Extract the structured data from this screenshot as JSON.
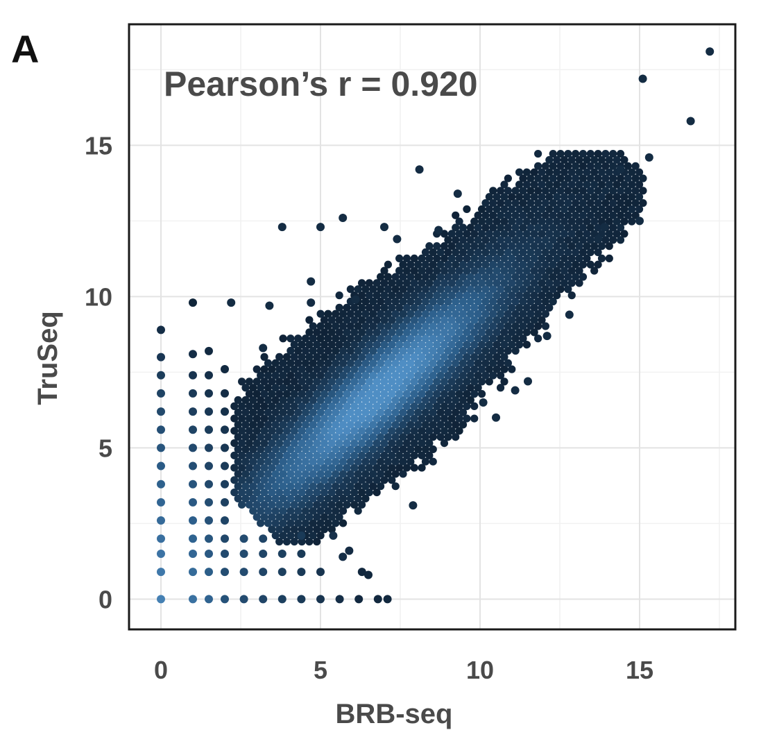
{
  "panel_label": "A",
  "chart_data": {
    "type": "scatter",
    "title": "",
    "annotation": "Pearson’s r = 0.920",
    "xlabel": "BRB-seq",
    "ylabel": "TruSeq",
    "xlim": [
      -1,
      18
    ],
    "ylim": [
      -1,
      19
    ],
    "x_ticks": [
      0,
      5,
      10,
      15
    ],
    "y_ticks": [
      0,
      5,
      10,
      15
    ],
    "x_tick_labels": [
      "0",
      "5",
      "10",
      "15"
    ],
    "y_tick_labels": [
      "0",
      "5",
      "10",
      "15"
    ],
    "grid": true,
    "legend": "none",
    "colors": {
      "low_density": "#0f2236",
      "mid_density": "#2c5e8a",
      "high_density": "#4f8ec4",
      "axis_text": "#4a4a4a"
    },
    "correlation": 0.92,
    "points_description": "dense hexbin cloud along y = x from about 2 to 14, discrete columns at x = 0, 1, 1.5, 2 and rows at y = 0, 1, 1.5, 2",
    "points": [
      [
        0,
        0
      ],
      [
        0,
        0.9
      ],
      [
        0,
        1.5
      ],
      [
        0,
        2
      ],
      [
        0,
        2.6
      ],
      [
        0,
        3.2
      ],
      [
        0,
        3.8
      ],
      [
        0,
        4.4
      ],
      [
        0,
        5
      ],
      [
        0,
        5.6
      ],
      [
        0,
        6.2
      ],
      [
        0,
        6.8
      ],
      [
        0,
        7.4
      ],
      [
        0,
        8
      ],
      [
        0,
        8.9
      ],
      [
        1,
        0
      ],
      [
        1,
        0.9
      ],
      [
        1,
        1.5
      ],
      [
        1,
        2
      ],
      [
        1,
        2.6
      ],
      [
        1,
        3.2
      ],
      [
        1,
        3.8
      ],
      [
        1,
        4.4
      ],
      [
        1,
        5
      ],
      [
        1,
        5.6
      ],
      [
        1,
        6.2
      ],
      [
        1,
        6.8
      ],
      [
        1,
        7.4
      ],
      [
        1,
        8.1
      ],
      [
        1,
        9.8
      ],
      [
        1.5,
        0
      ],
      [
        1.5,
        0.9
      ],
      [
        1.5,
        1.5
      ],
      [
        1.5,
        2
      ],
      [
        1.5,
        2.6
      ],
      [
        1.5,
        3.2
      ],
      [
        1.5,
        3.8
      ],
      [
        1.5,
        4.4
      ],
      [
        1.5,
        5
      ],
      [
        1.5,
        5.6
      ],
      [
        1.5,
        6.2
      ],
      [
        1.5,
        6.8
      ],
      [
        1.5,
        7.4
      ],
      [
        1.5,
        8.2
      ],
      [
        2,
        0
      ],
      [
        2,
        0.9
      ],
      [
        2,
        1.5
      ],
      [
        2,
        2
      ],
      [
        2,
        2.6
      ],
      [
        2,
        3.2
      ],
      [
        2,
        3.8
      ],
      [
        2,
        4.4
      ],
      [
        2,
        5
      ],
      [
        2,
        5.6
      ],
      [
        2,
        6.2
      ],
      [
        2,
        6.8
      ],
      [
        2,
        7.6
      ],
      [
        2.6,
        0
      ],
      [
        3.2,
        0
      ],
      [
        3.8,
        0
      ],
      [
        4.4,
        0
      ],
      [
        5,
        0
      ],
      [
        5.6,
        0
      ],
      [
        6.2,
        0
      ],
      [
        6.8,
        0
      ],
      [
        7.1,
        0
      ],
      [
        2.6,
        0.9
      ],
      [
        3.2,
        0.9
      ],
      [
        3.8,
        0.9
      ],
      [
        4.4,
        0.9
      ],
      [
        5,
        0.9
      ],
      [
        6.5,
        0.8
      ],
      [
        2.6,
        1.5
      ],
      [
        3.2,
        1.5
      ],
      [
        3.8,
        1.5
      ],
      [
        4.4,
        1.5
      ],
      [
        5.7,
        1.4
      ],
      [
        2.6,
        2.0
      ],
      [
        3.2,
        2.0
      ],
      [
        4.4,
        2.1
      ],
      [
        5.4,
        2.1
      ],
      [
        17.2,
        18.1
      ],
      [
        15.1,
        17.2
      ],
      [
        16.6,
        15.8
      ],
      [
        15.3,
        14.6
      ],
      [
        15,
        12.5
      ],
      [
        13.9,
        12.3
      ],
      [
        14.4,
        14.2
      ],
      [
        8.1,
        14.2
      ],
      [
        9.3,
        13.4
      ],
      [
        5.7,
        12.6
      ],
      [
        3.8,
        12.3
      ],
      [
        5,
        12.3
      ],
      [
        7,
        12.3
      ],
      [
        7.4,
        11.9
      ],
      [
        8.7,
        12.2
      ],
      [
        2.2,
        9.8
      ],
      [
        3.4,
        9.7
      ],
      [
        4.7,
        9.8
      ],
      [
        6.1,
        9.9
      ],
      [
        12.1,
        8.7
      ],
      [
        11.1,
        6.9
      ],
      [
        10.5,
        6
      ],
      [
        7.9,
        3.1
      ],
      [
        6.3,
        0.9
      ],
      [
        5.9,
        1.6
      ],
      [
        4.7,
        10.5
      ],
      [
        3.2,
        8.3
      ],
      [
        10.1,
        6.5
      ],
      [
        11.5,
        7.2
      ],
      [
        12.8,
        9.4
      ],
      [
        13.7,
        11.9
      ]
    ]
  }
}
